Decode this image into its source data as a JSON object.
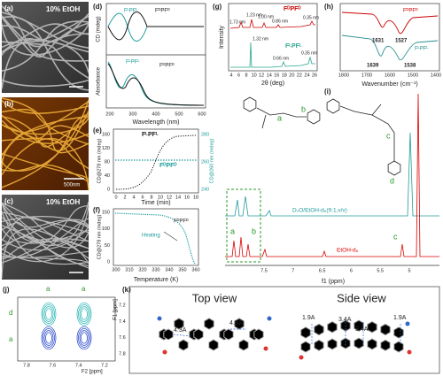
{
  "panels": {
    "a": {
      "label": "(a)",
      "note": "10% EtOH"
    },
    "b": {
      "label": "(b)",
      "scale": "500nm"
    },
    "c": {
      "label": "(c)",
      "note": "10% EtOH"
    },
    "d": {
      "label": "(d)",
      "ylabel_top": "CD (mdeg)",
      "ylabel_bottom": "Absorbance",
      "xlabel": "Wavelength (nm)",
      "xticks": [
        200,
        300,
        400,
        500,
        600
      ],
      "legend_top": [
        "FᴸPFᴸ",
        "FᴰPFᴰ"
      ],
      "legend_bottom": [
        "FᴸPFᴸ",
        "FᴰPFᴰ"
      ]
    },
    "e": {
      "label": "(e)",
      "series_top": "FᴸPFᴸ",
      "series_bottom": "FᴰPFᴰ",
      "ylabel": "CD@278 nm (mdeg)",
      "y2label": "CD@260 nm (mdeg)",
      "xlabel": "Time (min)",
      "xticks": [
        0,
        2,
        4,
        6,
        8,
        10,
        12,
        14,
        16,
        18
      ],
      "yticks": [
        0,
        40,
        80,
        120,
        160
      ],
      "y2ticks": [
        240,
        260,
        280
      ]
    },
    "f": {
      "label": "(f)",
      "series": "FᴰPFᴰ",
      "note": "Heating",
      "ylabel": "CD@278 nm (mdeg)",
      "xlabel": "Temperature (K)",
      "xticks": [
        300,
        310,
        320,
        330,
        340,
        350,
        360
      ],
      "yticks": [
        0,
        50,
        100,
        150
      ]
    },
    "g": {
      "label": "(g)",
      "ylabel": "Intensity",
      "xlabel": "2θ (deg)",
      "xticks": [
        4,
        6,
        8,
        10,
        12,
        14,
        16,
        18,
        20,
        22,
        24,
        26
      ],
      "top": "FᴰPFᴰ",
      "bottom": "FᴸPFᴸ",
      "peaks_top": [
        "1.73 nm",
        "1.23 nm",
        "1.00 nm",
        "0.86 nm",
        "0.35 nm"
      ],
      "peaks_bottom": [
        "1.32 nm",
        "0.66 nm",
        "0.35 nm"
      ]
    },
    "h": {
      "label": "(h)",
      "top": "FᴰPFᴰ",
      "bottom": "FᴸPFᴸ",
      "peaks": [
        "1631",
        "1527",
        "1639",
        "1538"
      ],
      "xlabel": "Wavenumber (cm⁻¹)",
      "xticks": [
        1800,
        1700,
        1600,
        1500,
        1400
      ]
    },
    "i": {
      "label": "(i)",
      "sites": [
        "a",
        "b",
        "c",
        "d"
      ],
      "spectrum_top": "D₂O/EtOH-d₆(9:1,v/v)",
      "spectrum_bottom": "EtOH-d₆",
      "box_labels": [
        "a",
        "b"
      ],
      "peak_c": "c",
      "xlabel": "f1 (ppm)",
      "xticks": [
        7.5,
        7.0,
        6.5,
        6.0,
        5.5,
        5.0
      ]
    },
    "j": {
      "label": "(j)",
      "marks": [
        "a",
        "a",
        "d",
        "a"
      ],
      "ylabel": "F1 [ppm]",
      "xlabel": "F2 [ppm]",
      "xticks": [
        7.8,
        7.6,
        7.4,
        7.2
      ],
      "yticks": [
        7.2,
        7.4,
        7.6,
        7.8
      ]
    },
    "k": {
      "label": "(k)",
      "top_view": "Top view",
      "side_view": "Side view",
      "top_distances": [
        "4.3A",
        "4.3A"
      ],
      "side_distances": [
        "1.9A",
        "3.4A",
        "3.4A",
        "1.9A"
      ]
    }
  }
}
